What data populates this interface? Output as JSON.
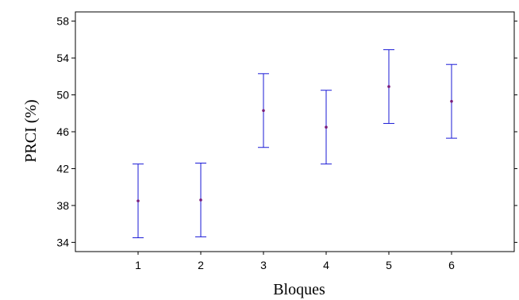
{
  "chart_data": {
    "type": "scatter",
    "subtype": "means-with-interval-error-bars",
    "xlabel": "Bloques",
    "ylabel": "PRCI (%)",
    "categories": [
      "1",
      "2",
      "3",
      "4",
      "5",
      "6"
    ],
    "x": [
      1,
      2,
      3,
      4,
      5,
      6
    ],
    "means": [
      38.5,
      38.6,
      48.3,
      46.5,
      50.9,
      49.3
    ],
    "lower": [
      34.5,
      34.6,
      44.3,
      42.5,
      46.9,
      45.3
    ],
    "upper": [
      42.5,
      42.6,
      52.3,
      50.5,
      54.9,
      53.3
    ],
    "xlim": [
      0,
      7
    ],
    "ylim": [
      33,
      59
    ],
    "yticks": [
      34,
      38,
      42,
      46,
      50,
      54,
      58
    ],
    "grid": false,
    "legend": "none",
    "colors": {
      "errorbar": "#1a1ad6",
      "point": "#7a1d7a",
      "axis": "#000000"
    }
  }
}
